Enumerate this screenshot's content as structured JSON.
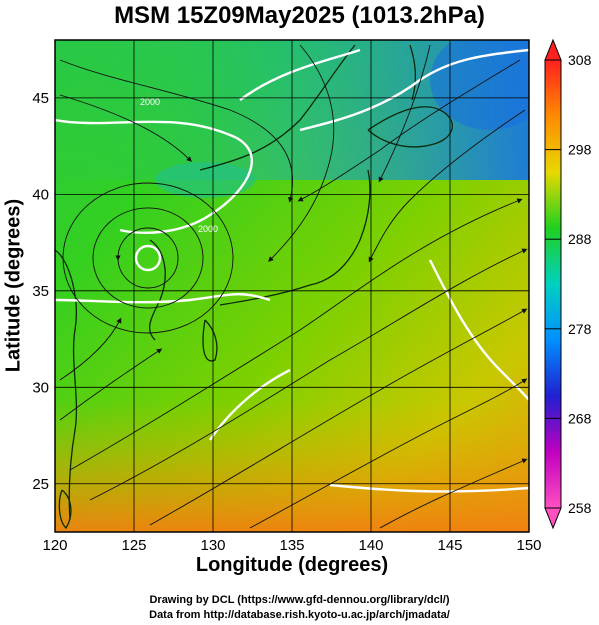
{
  "title": "MSM 15Z09May2025 (1013.2hPa)",
  "map": {
    "xlabel": "Longitude (degrees)",
    "ylabel": "Latitude  (degrees)",
    "lon_range": [
      120,
      150
    ],
    "lat_range": [
      22.5,
      48
    ],
    "lon_ticks": [
      "120",
      "125",
      "130",
      "135",
      "140",
      "145",
      "150"
    ],
    "lat_ticks": [
      "25",
      "30",
      "35",
      "40",
      "45"
    ],
    "contour_labels": [
      "2000",
      "2000"
    ],
    "field": "temperature",
    "overlay": "streamlines",
    "low_center_lonlat": [
      126.3,
      37.3
    ]
  },
  "colorbar": {
    "ticks": [
      "308",
      "298",
      "288",
      "278",
      "268",
      "258"
    ],
    "colors": [
      "#ff2020",
      "#ff8a00",
      "#e8d800",
      "#20d020",
      "#00d0c0",
      "#0090ff",
      "#2020d0",
      "#c000c0",
      "#ff50c0"
    ]
  },
  "credits": {
    "line1": "Drawing by DCL (https://www.gfd-dennou.org/library/dcl/)",
    "line2": "Data from http://database.rish.kyoto-u.ac.jp/arch/jmadata/"
  }
}
